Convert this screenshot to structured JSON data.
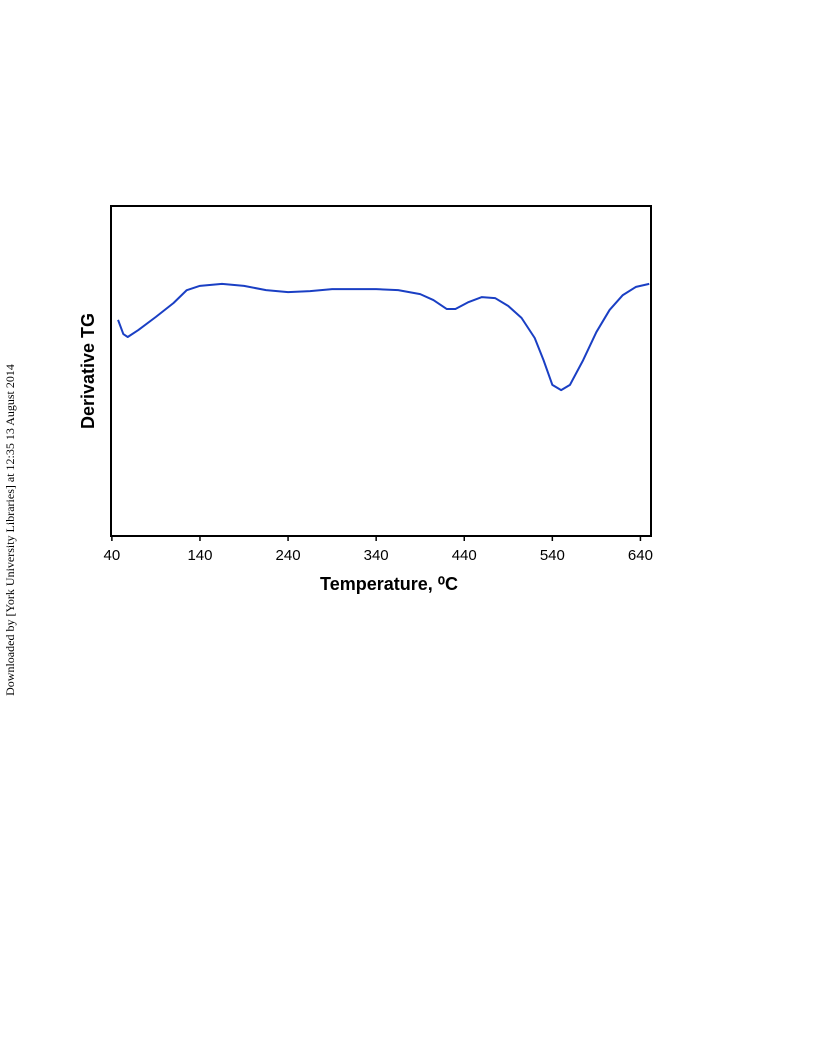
{
  "watermark": "Downloaded by [York University Libraries] at 12:35 13 August 2014",
  "chart_data": {
    "type": "line",
    "y_label": "Derivative TG",
    "x_label": "Temperature, ⁰C",
    "x": [
      47,
      53,
      58,
      70,
      90,
      110,
      125,
      140,
      165,
      190,
      215,
      240,
      265,
      290,
      315,
      340,
      365,
      390,
      405,
      420,
      430,
      445,
      460,
      475,
      490,
      505,
      520,
      530,
      540,
      550,
      560,
      575,
      590,
      605,
      620,
      635,
      650
    ],
    "series": [
      {
        "color": "#1a3fc4",
        "values": [
          65.5,
          61.2,
          60.3,
          62.4,
          66.4,
          70.6,
          74.5,
          75.8,
          76.4,
          75.8,
          74.5,
          73.9,
          74.2,
          74.8,
          74.8,
          74.8,
          74.5,
          73.3,
          71.5,
          68.8,
          68.8,
          70.9,
          72.4,
          72.1,
          69.7,
          66.1,
          60.0,
          53.3,
          45.8,
          44.2,
          45.8,
          53.3,
          61.8,
          68.5,
          73.0,
          75.5,
          76.4
        ]
      }
    ],
    "xlim": [
      39,
      652
    ],
    "ylim": [
      0,
      100
    ],
    "xticks": [
      40,
      140,
      240,
      340,
      440,
      540,
      640
    ]
  }
}
